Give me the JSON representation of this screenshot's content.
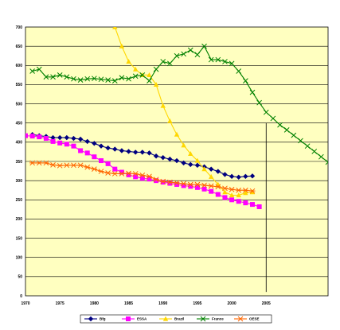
{
  "chart_data": {
    "type": "line",
    "title": "",
    "xlabel": "",
    "ylabel": "",
    "xlim": [
      1970,
      2014
    ],
    "ylim": [
      0,
      700
    ],
    "grid": true,
    "legend_position": "bottom",
    "background_color": "#FFFFC0",
    "y_ticks": [
      0,
      50,
      100,
      150,
      200,
      250,
      300,
      350,
      400,
      450,
      500,
      550,
      600,
      650,
      700
    ],
    "x_ticks": [
      1970,
      1975,
      1980,
      1985,
      1990,
      1995,
      2000,
      2005
    ],
    "x_tick_labels": [
      "1970",
      "1975",
      "1980",
      "1985",
      "1990",
      "1995",
      "2000",
      "2005"
    ],
    "vertical_marker_x": 2005,
    "series": [
      {
        "name": "Bfg",
        "color": "#000080",
        "marker": "diamond",
        "x": [
          1971,
          1972,
          1973,
          1974,
          1975,
          1976,
          1977,
          1978,
          1979,
          1980,
          1981,
          1982,
          1983,
          1984,
          1985,
          1986,
          1987,
          1988,
          1989,
          1990,
          1991,
          1992,
          1993,
          1994,
          1995,
          1996,
          1997,
          1998,
          1999,
          2000,
          2001,
          2002,
          2003
        ],
        "y": [
          420,
          417,
          415,
          412,
          412,
          412,
          410,
          408,
          402,
          397,
          390,
          385,
          382,
          378,
          376,
          374,
          374,
          372,
          364,
          360,
          356,
          352,
          346,
          342,
          340,
          336,
          330,
          324,
          316,
          311,
          309,
          311,
          312
        ]
      },
      {
        "name": "ESSA",
        "color": "#FF00FF",
        "marker": "square",
        "x": [
          1970,
          1971,
          1972,
          1973,
          1974,
          1975,
          1976,
          1977,
          1978,
          1979,
          1980,
          1981,
          1982,
          1983,
          1984,
          1985,
          1986,
          1987,
          1988,
          1989,
          1990,
          1991,
          1992,
          1993,
          1994,
          1995,
          1996,
          1997,
          1998,
          1999,
          2000,
          2001,
          2002,
          2003,
          2004
        ],
        "y": [
          417,
          416,
          414,
          410,
          402,
          398,
          395,
          390,
          378,
          372,
          362,
          352,
          344,
          330,
          322,
          315,
          310,
          306,
          304,
          300,
          296,
          293,
          290,
          287,
          285,
          282,
          278,
          272,
          264,
          256,
          250,
          246,
          242,
          238,
          232
        ]
      },
      {
        "name": "Brazil",
        "color": "#FFD700",
        "marker": "triangle",
        "x": [
          1983,
          1984,
          1985,
          1986,
          1987,
          1988,
          1989,
          1990,
          1991,
          1992,
          1993,
          1994,
          1995,
          1996,
          1997,
          1998,
          1999,
          2000,
          2001,
          2002,
          2003
        ],
        "y": [
          700,
          650,
          610,
          590,
          575,
          575,
          550,
          495,
          455,
          420,
          392,
          370,
          352,
          330,
          310,
          290,
          270,
          262,
          262,
          268,
          270
        ]
      },
      {
        "name": "France",
        "color": "#008000",
        "marker": "x",
        "x": [
          1971,
          1972,
          1973,
          1974,
          1975,
          1976,
          1977,
          1978,
          1979,
          1980,
          1981,
          1982,
          1983,
          1984,
          1985,
          1986,
          1987,
          1988,
          1989,
          1990,
          1991,
          1992,
          1993,
          1994,
          1995,
          1996,
          1997,
          1998,
          1999,
          2000,
          2001,
          2002,
          2003,
          2004,
          2005,
          2006,
          2007,
          2008,
          2009,
          2010,
          2011,
          2012,
          2013,
          2014
        ],
        "y": [
          585,
          590,
          570,
          570,
          575,
          570,
          565,
          562,
          565,
          566,
          564,
          562,
          560,
          568,
          565,
          572,
          575,
          560,
          590,
          610,
          605,
          625,
          630,
          640,
          628,
          650,
          615,
          615,
          610,
          605,
          585,
          560,
          530,
          503,
          478,
          462,
          445,
          432,
          418,
          404,
          390,
          376,
          362,
          348
        ]
      },
      {
        "name": "OESE",
        "color": "#FF6600",
        "marker": "asterisk",
        "x": [
          1971,
          1972,
          1973,
          1974,
          1975,
          1976,
          1977,
          1978,
          1979,
          1980,
          1981,
          1982,
          1983,
          1984,
          1985,
          1986,
          1987,
          1988,
          1989,
          1990,
          1991,
          1992,
          1993,
          1994,
          1995,
          1996,
          1997,
          1998,
          1999,
          2000,
          2001,
          2002,
          2003
        ],
        "y": [
          346,
          346,
          346,
          341,
          339,
          340,
          340,
          340,
          335,
          330,
          324,
          320,
          318,
          318,
          319,
          318,
          314,
          311,
          303,
          298,
          296,
          294,
          292,
          290,
          290,
          288,
          286,
          284,
          280,
          277,
          275,
          275,
          273
        ]
      }
    ]
  }
}
